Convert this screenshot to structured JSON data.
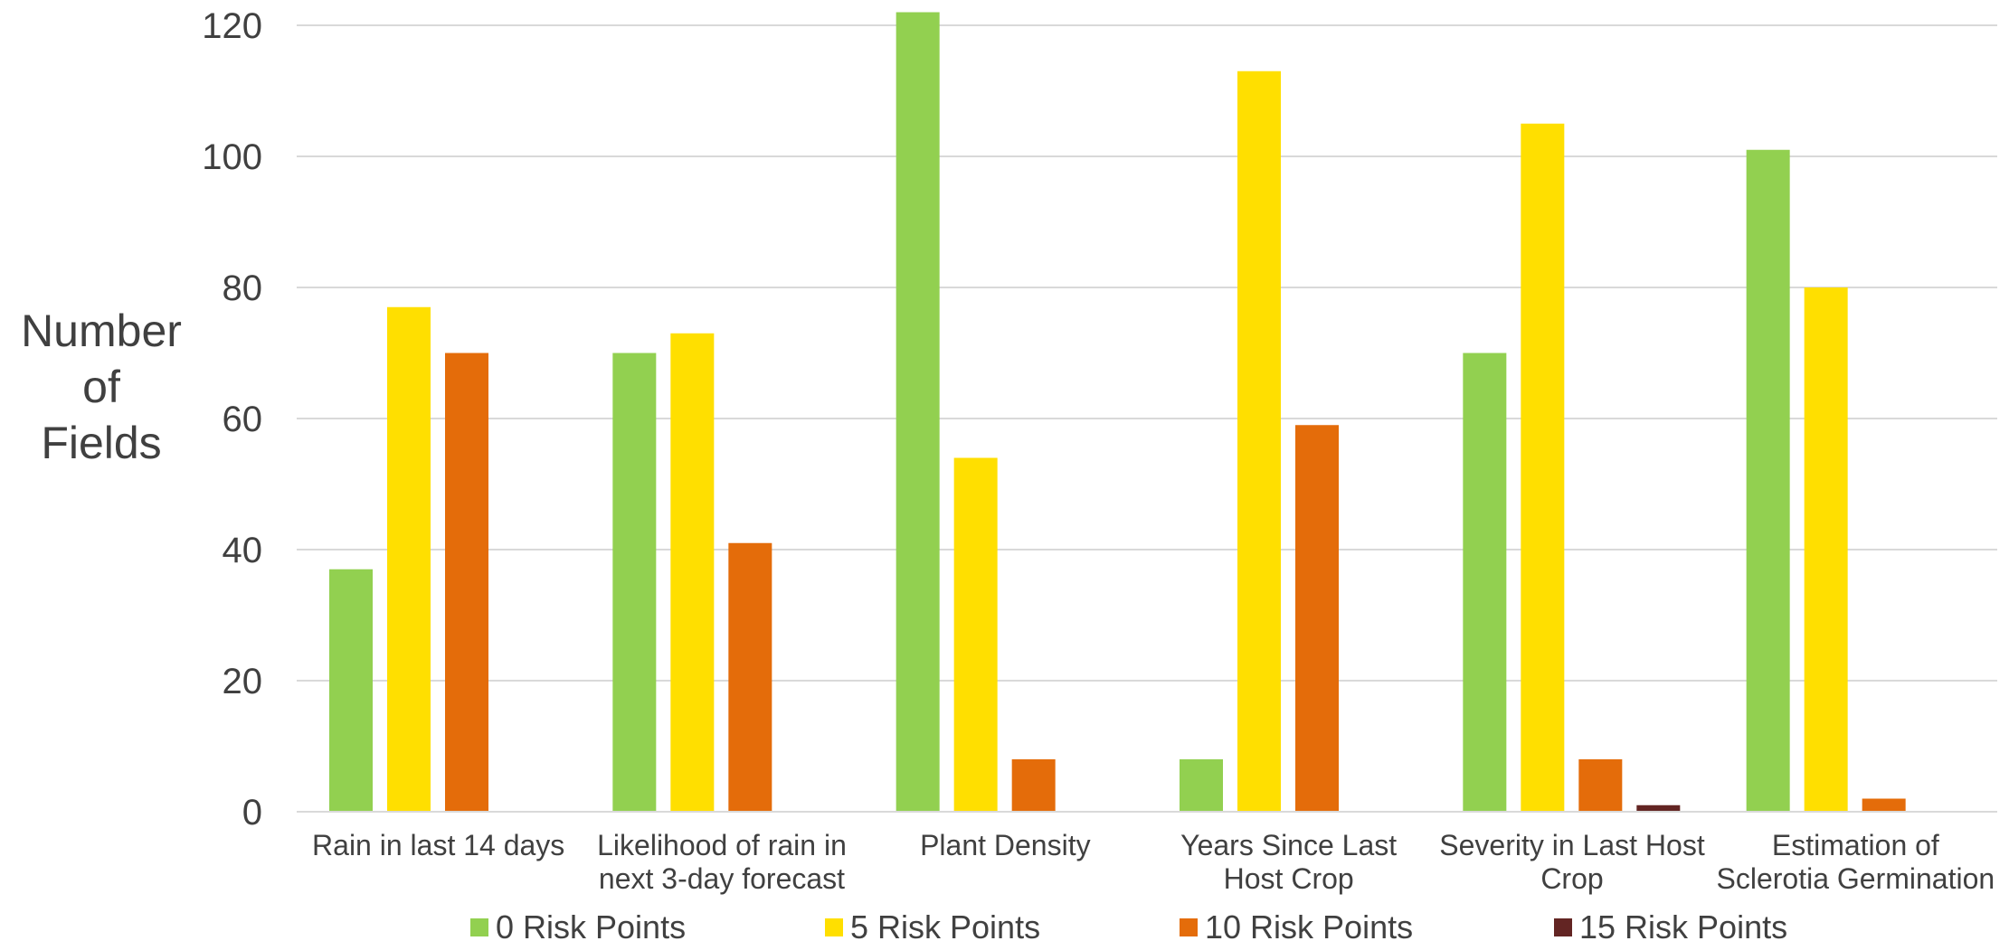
{
  "chart_data": {
    "type": "bar",
    "title": "",
    "xlabel": "",
    "ylabel": "Number of Fields",
    "ylabel_lines": [
      "Number",
      "of",
      "Fields"
    ],
    "ylim": [
      0,
      120
    ],
    "yticks": [
      0,
      20,
      40,
      60,
      80,
      100,
      120
    ],
    "grid": true,
    "legend_position": "bottom",
    "categories": [
      "Rain in last 14 days",
      "Likelihood of rain in next 3-day forecast",
      "Plant Density",
      "Years Since Last Host Crop",
      "Severity in Last Host Crop",
      "Estimation of Sclerotia Germination"
    ],
    "category_label_lines": [
      [
        "Rain in last 14 days"
      ],
      [
        "Likelihood of rain in",
        "next 3-day forecast"
      ],
      [
        "Plant Density"
      ],
      [
        "Years Since Last",
        "Host Crop"
      ],
      [
        "Severity in Last Host",
        "Crop"
      ],
      [
        "Estimation of",
        "Sclerotia Germination"
      ]
    ],
    "series": [
      {
        "name": "0 Risk Points",
        "color": "#92D050",
        "values": [
          37,
          70,
          122,
          8,
          70,
          101
        ]
      },
      {
        "name": "5 Risk Points",
        "color": "#FFDF00",
        "values": [
          77,
          73,
          54,
          113,
          105,
          80
        ]
      },
      {
        "name": "10 Risk Points",
        "color": "#E46C0A",
        "values": [
          70,
          41,
          8,
          59,
          8,
          2
        ]
      },
      {
        "name": "15 Risk Points",
        "color": "#632523",
        "values": [
          0,
          0,
          0,
          0,
          1,
          0
        ]
      }
    ],
    "colors": {
      "grid": "#D9D9D9",
      "text": "#404040"
    }
  }
}
